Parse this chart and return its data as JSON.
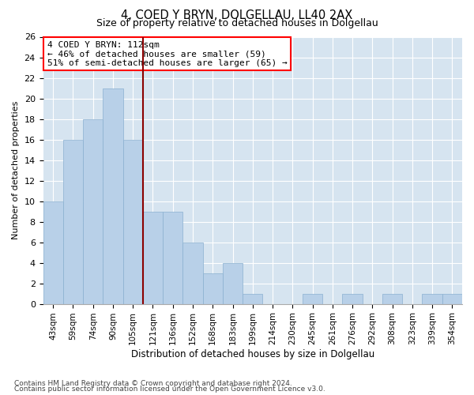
{
  "title": "4, COED Y BRYN, DOLGELLAU, LL40 2AX",
  "subtitle": "Size of property relative to detached houses in Dolgellau",
  "xlabel": "Distribution of detached houses by size in Dolgellau",
  "ylabel": "Number of detached properties",
  "footnote1": "Contains HM Land Registry data © Crown copyright and database right 2024.",
  "footnote2": "Contains public sector information licensed under the Open Government Licence v3.0.",
  "bar_labels": [
    "43sqm",
    "59sqm",
    "74sqm",
    "90sqm",
    "105sqm",
    "121sqm",
    "136sqm",
    "152sqm",
    "168sqm",
    "183sqm",
    "199sqm",
    "214sqm",
    "230sqm",
    "245sqm",
    "261sqm",
    "276sqm",
    "292sqm",
    "308sqm",
    "323sqm",
    "339sqm",
    "354sqm"
  ],
  "bar_values": [
    10,
    16,
    18,
    21,
    16,
    9,
    9,
    6,
    3,
    4,
    1,
    0,
    0,
    1,
    0,
    1,
    0,
    1,
    0,
    1,
    1
  ],
  "bar_color": "#b8d0e8",
  "bar_edgecolor": "#8ab0d0",
  "ylim": [
    0,
    26
  ],
  "yticks": [
    0,
    2,
    4,
    6,
    8,
    10,
    12,
    14,
    16,
    18,
    20,
    22,
    24,
    26
  ],
  "property_label": "4 COED Y BRYN: 112sqm",
  "annotation_line1": "← 46% of detached houses are smaller (59)",
  "annotation_line2": "51% of semi-detached houses are larger (65) →",
  "vline_bar_index": 4,
  "bg_color": "#d6e4f0"
}
